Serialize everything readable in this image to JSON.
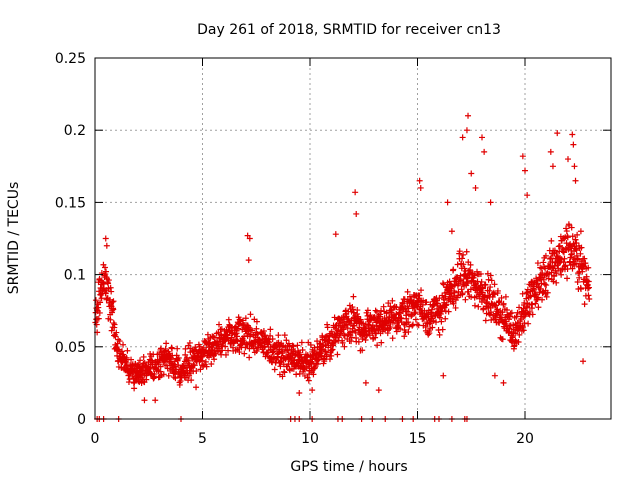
{
  "chart_data": {
    "type": "scatter",
    "title": "Day 261 of 2018, SRMTID for receiver cn13",
    "xlabel": "GPS time / hours",
    "ylabel": "SRMTID / TECUs",
    "xlim": [
      0,
      24
    ],
    "ylim": [
      0,
      0.25
    ],
    "xticks": [
      0,
      5,
      10,
      15,
      20
    ],
    "xtick_labels": [
      "0",
      "5",
      "10",
      "15",
      "20"
    ],
    "yticks": [
      0,
      0.05,
      0.1,
      0.15,
      0.2,
      0.25
    ],
    "ytick_labels": [
      "0",
      "0.05",
      "0.1",
      "0.15",
      "0.2",
      "0.25"
    ],
    "grid": true,
    "legend": "none",
    "marker": "plus",
    "color": "#e00000",
    "series": [
      {
        "name": "SRMTID",
        "trend": {
          "x": [
            0,
            0.2,
            0.5,
            0.8,
            1.0,
            1.5,
            2.0,
            2.5,
            3.0,
            3.5,
            4.0,
            4.5,
            5.0,
            5.5,
            6.0,
            6.5,
            7.0,
            7.5,
            8.0,
            8.5,
            9.0,
            9.5,
            10.0,
            10.5,
            11.0,
            11.5,
            12.0,
            12.5,
            13.0,
            13.5,
            14.0,
            14.5,
            15.0,
            15.5,
            16.0,
            16.5,
            17.0,
            17.5,
            18.0,
            18.5,
            19.0,
            19.5,
            20.0,
            20.5,
            21.0,
            21.5,
            22.0,
            22.5,
            23.0
          ],
          "y": [
            0.07,
            0.085,
            0.095,
            0.075,
            0.05,
            0.035,
            0.03,
            0.035,
            0.04,
            0.04,
            0.035,
            0.04,
            0.045,
            0.05,
            0.055,
            0.055,
            0.06,
            0.055,
            0.05,
            0.045,
            0.045,
            0.04,
            0.04,
            0.045,
            0.055,
            0.065,
            0.07,
            0.06,
            0.065,
            0.065,
            0.07,
            0.075,
            0.08,
            0.07,
            0.075,
            0.085,
            0.1,
            0.095,
            0.09,
            0.08,
            0.07,
            0.06,
            0.075,
            0.09,
            0.1,
            0.11,
            0.12,
            0.11,
            0.09
          ]
        },
        "scatter_spread": 0.022,
        "spike_points": [
          {
            "x": 0.5,
            "y": 0.125
          },
          {
            "x": 0.55,
            "y": 0.12
          },
          {
            "x": 7.1,
            "y": 0.127
          },
          {
            "x": 7.2,
            "y": 0.125
          },
          {
            "x": 7.15,
            "y": 0.11
          },
          {
            "x": 11.2,
            "y": 0.128
          },
          {
            "x": 12.1,
            "y": 0.157
          },
          {
            "x": 12.15,
            "y": 0.142
          },
          {
            "x": 15.1,
            "y": 0.165
          },
          {
            "x": 15.15,
            "y": 0.16
          },
          {
            "x": 16.4,
            "y": 0.15
          },
          {
            "x": 16.6,
            "y": 0.13
          },
          {
            "x": 17.1,
            "y": 0.195
          },
          {
            "x": 17.3,
            "y": 0.2
          },
          {
            "x": 17.35,
            "y": 0.21
          },
          {
            "x": 17.5,
            "y": 0.17
          },
          {
            "x": 17.7,
            "y": 0.16
          },
          {
            "x": 18.0,
            "y": 0.195
          },
          {
            "x": 18.1,
            "y": 0.185
          },
          {
            "x": 18.4,
            "y": 0.15
          },
          {
            "x": 19.9,
            "y": 0.182
          },
          {
            "x": 20.0,
            "y": 0.172
          },
          {
            "x": 20.1,
            "y": 0.155
          },
          {
            "x": 21.2,
            "y": 0.185
          },
          {
            "x": 21.3,
            "y": 0.175
          },
          {
            "x": 21.5,
            "y": 0.198
          },
          {
            "x": 22.0,
            "y": 0.18
          },
          {
            "x": 22.2,
            "y": 0.197
          },
          {
            "x": 22.25,
            "y": 0.19
          },
          {
            "x": 22.3,
            "y": 0.175
          },
          {
            "x": 22.35,
            "y": 0.165
          },
          {
            "x": 22.6,
            "y": 0.13
          },
          {
            "x": 0.1,
            "y": 0.06
          },
          {
            "x": 2.3,
            "y": 0.013
          },
          {
            "x": 2.8,
            "y": 0.013
          },
          {
            "x": 4.7,
            "y": 0.022
          },
          {
            "x": 9.5,
            "y": 0.018
          },
          {
            "x": 10.1,
            "y": 0.02
          },
          {
            "x": 12.6,
            "y": 0.025
          },
          {
            "x": 13.2,
            "y": 0.02
          },
          {
            "x": 16.2,
            "y": 0.03
          },
          {
            "x": 18.6,
            "y": 0.03
          },
          {
            "x": 19.0,
            "y": 0.025
          },
          {
            "x": 22.7,
            "y": 0.04
          }
        ],
        "zero_points_x": [
          0.1,
          0.2,
          0.4,
          1.1,
          4.0,
          9.1,
          9.3,
          9.5,
          10.1,
          11.3,
          11.5,
          12.4,
          12.9,
          13.5,
          14.3,
          14.8,
          15.8,
          16.0,
          16.6,
          17.2,
          17.3
        ]
      }
    ]
  }
}
